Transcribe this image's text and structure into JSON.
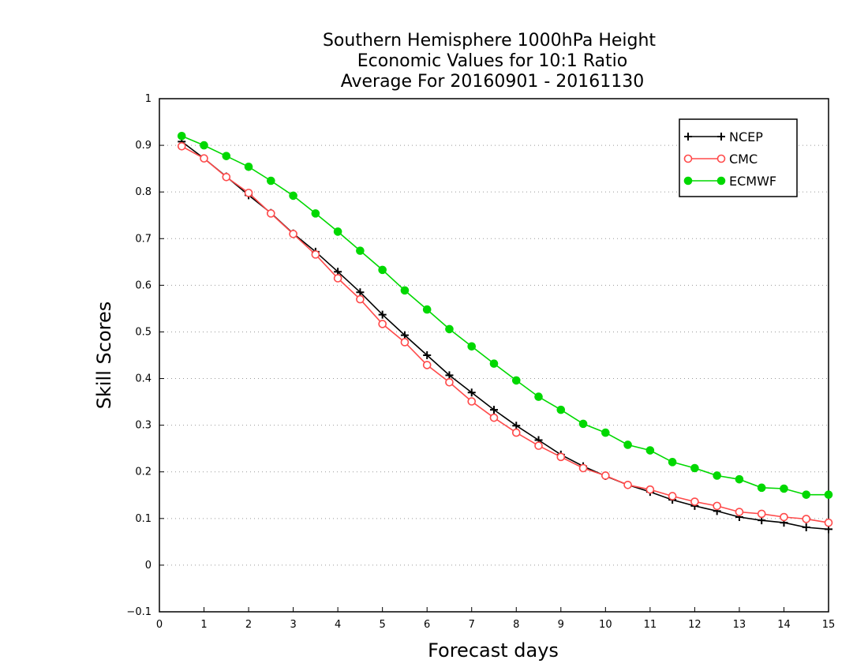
{
  "chart_data": {
    "type": "line",
    "title": [
      "Southern Hemisphere 1000hPa Height",
      "Economic Values for 10:1 Ratio",
      "Average For 20160901 - 20161130"
    ],
    "xlabel": "Forecast days",
    "ylabel": "Skill Scores",
    "xlim": [
      0,
      15
    ],
    "ylim": [
      -0.1,
      1
    ],
    "x_ticks": [
      "0",
      "1",
      "2",
      "3",
      "4",
      "5",
      "6",
      "7",
      "8",
      "9",
      "10",
      "11",
      "12",
      "13",
      "14",
      "15"
    ],
    "y_ticks": [
      "-0.1",
      "0",
      "0.1",
      "0.2",
      "0.3",
      "0.4",
      "0.5",
      "0.6",
      "0.7",
      "0.8",
      "0.9",
      "1"
    ],
    "grid": "horizontal dotted",
    "legend_position": "top-right",
    "x": [
      0.5,
      1,
      1.5,
      2,
      2.5,
      3,
      3.5,
      4,
      4.5,
      5,
      5.5,
      6,
      6.5,
      7,
      7.5,
      8,
      8.5,
      9,
      9.5,
      10,
      10.5,
      11,
      11.5,
      12,
      12.5,
      13,
      13.5,
      14,
      14.5,
      15
    ],
    "series": [
      {
        "name": "NCEP",
        "color": "#000000",
        "marker": "plus",
        "values": [
          0.908,
          0.872,
          0.833,
          0.793,
          0.755,
          0.711,
          0.672,
          0.629,
          0.585,
          0.537,
          0.493,
          0.45,
          0.407,
          0.37,
          0.333,
          0.299,
          0.268,
          0.237,
          0.212,
          0.191,
          0.172,
          0.157,
          0.14,
          0.127,
          0.116,
          0.103,
          0.096,
          0.091,
          0.081,
          0.077
        ]
      },
      {
        "name": "CMC",
        "color": "#ff4a4a",
        "marker": "open-circle",
        "values": [
          0.898,
          0.872,
          0.832,
          0.798,
          0.754,
          0.71,
          0.666,
          0.615,
          0.57,
          0.517,
          0.478,
          0.429,
          0.392,
          0.351,
          0.316,
          0.284,
          0.256,
          0.232,
          0.208,
          0.192,
          0.172,
          0.162,
          0.148,
          0.136,
          0.127,
          0.114,
          0.11,
          0.103,
          0.099,
          0.091
        ]
      },
      {
        "name": "ECMWF",
        "color": "#00d800",
        "marker": "filled-circle",
        "values": [
          0.92,
          0.9,
          0.877,
          0.854,
          0.824,
          0.792,
          0.754,
          0.715,
          0.674,
          0.633,
          0.589,
          0.548,
          0.506,
          0.469,
          0.432,
          0.396,
          0.361,
          0.333,
          0.303,
          0.284,
          0.258,
          0.246,
          0.221,
          0.208,
          0.192,
          0.184,
          0.166,
          0.164,
          0.151,
          0.151
        ]
      }
    ]
  }
}
